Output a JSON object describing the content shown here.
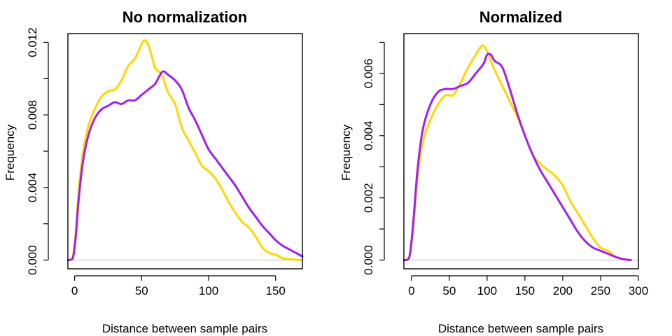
{
  "chart_data": [
    {
      "type": "line",
      "title": "No normalization",
      "xlabel": "Distance between sample pairs",
      "ylabel": "Frequency",
      "xlim": [
        -5,
        170
      ],
      "ylim": [
        0,
        0.012
      ],
      "xticks": [
        0,
        50,
        100,
        150
      ],
      "yticks": [
        0,
        0.004,
        0.008,
        0.012
      ],
      "ytick_labels": [
        "0.000",
        "0.004",
        "0.008",
        "0.012"
      ],
      "yminor": [
        0.002,
        0.006,
        0.01
      ],
      "baseline": 0,
      "grid": false,
      "series": [
        {
          "color": "#FFD700",
          "x": [
            -5,
            -3,
            -1,
            1,
            3,
            6,
            10,
            15,
            20,
            25,
            30,
            35,
            40,
            45,
            50,
            52,
            54,
            57,
            60,
            65,
            70,
            75,
            80,
            85,
            90,
            95,
            100,
            105,
            110,
            115,
            120,
            125,
            130,
            135,
            140,
            145,
            150,
            155,
            160,
            165,
            170
          ],
          "y": [
            0,
            2e-05,
            0.0003,
            0.0017,
            0.0038,
            0.0058,
            0.0073,
            0.0083,
            0.009,
            0.0093,
            0.0094,
            0.0099,
            0.0107,
            0.0111,
            0.0119,
            0.0121,
            0.012,
            0.0114,
            0.0106,
            0.0102,
            0.0092,
            0.0086,
            0.0073,
            0.0066,
            0.0059,
            0.0052,
            0.0049,
            0.0045,
            0.0039,
            0.0032,
            0.0026,
            0.0021,
            0.0018,
            0.0013,
            0.0007,
            0.0004,
            0.0003,
            0.0001,
            5e-05,
            2e-05,
            0
          ]
        },
        {
          "color": "#A020F0",
          "x": [
            -5,
            -3,
            -1,
            1,
            3,
            6,
            10,
            15,
            20,
            25,
            30,
            35,
            40,
            45,
            50,
            55,
            60,
            63,
            66,
            70,
            75,
            80,
            85,
            90,
            95,
            100,
            105,
            110,
            115,
            120,
            125,
            130,
            135,
            140,
            145,
            150,
            155,
            160,
            165,
            170
          ],
          "y": [
            0,
            2e-05,
            0.0002,
            0.0014,
            0.0033,
            0.0053,
            0.0068,
            0.0078,
            0.0083,
            0.0085,
            0.0087,
            0.0086,
            0.0088,
            0.0088,
            0.0091,
            0.0094,
            0.0097,
            0.0101,
            0.0104,
            0.0102,
            0.0099,
            0.0094,
            0.0084,
            0.0077,
            0.0069,
            0.0061,
            0.0056,
            0.0051,
            0.0046,
            0.0041,
            0.0035,
            0.0029,
            0.0024,
            0.0019,
            0.0015,
            0.0011,
            0.0008,
            0.0006,
            0.0004,
            0.0002
          ]
        }
      ]
    },
    {
      "type": "line",
      "title": "Normalized",
      "xlabel": "Distance between sample pairs",
      "ylabel": "Frequency",
      "xlim": [
        -10,
        300
      ],
      "ylim": [
        0,
        0.007
      ],
      "xticks": [
        0,
        50,
        100,
        150,
        200,
        250,
        300
      ],
      "yticks": [
        0,
        0.002,
        0.004,
        0.006
      ],
      "ytick_labels": [
        "0.000",
        "0.002",
        "0.004",
        "0.006"
      ],
      "yminor": [
        0.001,
        0.003,
        0.005,
        0.007
      ],
      "baseline": 0,
      "grid": false,
      "series": [
        {
          "color": "#FFD700",
          "x": [
            -10,
            -5,
            -2,
            2,
            8,
            15,
            25,
            35,
            45,
            55,
            65,
            75,
            85,
            90,
            95,
            100,
            105,
            110,
            120,
            130,
            140,
            150,
            160,
            170,
            180,
            190,
            200,
            210,
            220,
            230,
            240,
            250,
            260,
            270,
            280,
            290
          ],
          "y": [
            0,
            2e-05,
            0.0002,
            0.0009,
            0.0026,
            0.0038,
            0.0045,
            0.005,
            0.0053,
            0.0053,
            0.0057,
            0.0062,
            0.0066,
            0.0068,
            0.0069,
            0.0067,
            0.0064,
            0.0061,
            0.0056,
            0.0051,
            0.0046,
            0.004,
            0.0034,
            0.0031,
            0.0029,
            0.0027,
            0.0024,
            0.0019,
            0.0015,
            0.0011,
            0.0007,
            0.0004,
            0.0003,
            0.0001,
            3e-05,
            0
          ]
        },
        {
          "color": "#A020F0",
          "x": [
            -10,
            -5,
            -2,
            2,
            8,
            15,
            25,
            35,
            45,
            55,
            65,
            75,
            85,
            95,
            100,
            105,
            110,
            120,
            130,
            140,
            150,
            160,
            170,
            180,
            190,
            200,
            210,
            220,
            230,
            240,
            250,
            260,
            270,
            280,
            290
          ],
          "y": [
            0,
            2e-05,
            0.0002,
            0.0011,
            0.0029,
            0.0042,
            0.005,
            0.0054,
            0.0055,
            0.0055,
            0.0056,
            0.0057,
            0.006,
            0.0063,
            0.0066,
            0.0066,
            0.0064,
            0.0062,
            0.0055,
            0.0047,
            0.004,
            0.0034,
            0.0029,
            0.0025,
            0.0021,
            0.0017,
            0.0013,
            0.0009,
            0.0006,
            0.0004,
            0.0003,
            0.0002,
            0.0001,
            3e-05,
            0
          ]
        }
      ]
    }
  ]
}
